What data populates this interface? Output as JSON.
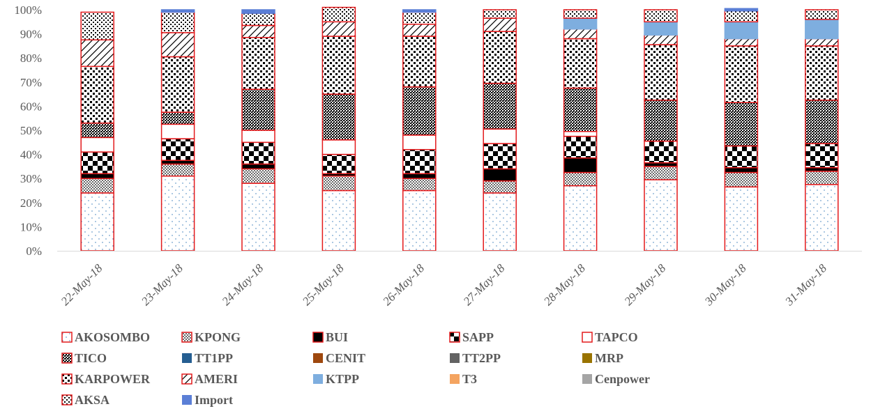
{
  "chart_data": {
    "type": "bar",
    "stacked": true,
    "percent_stacked": true,
    "categories": [
      "22-May-18",
      "23-May-18",
      "24-May-18",
      "25-May-18",
      "26-May-18",
      "27-May-18",
      "28-May-18",
      "29-May-18",
      "30-May-18",
      "31-May-18"
    ],
    "ylim": [
      0,
      100
    ],
    "y_ticks": [
      "0%",
      "10%",
      "20%",
      "30%",
      "40%",
      "50%",
      "60%",
      "70%",
      "80%",
      "90%",
      "100%"
    ],
    "grid": false,
    "legend_position": "bottom",
    "series": [
      {
        "name": "AKOSOMBO",
        "pattern": "dots-sparse",
        "edge": "#e31a1c",
        "values": [
          24,
          31,
          28,
          25,
          25,
          24,
          27,
          29.5,
          26.5,
          27.5
        ]
      },
      {
        "name": "KPONG",
        "pattern": "dots-dense",
        "edge": "#e31a1c",
        "values": [
          6,
          5,
          6,
          6,
          5,
          5,
          5.5,
          5.5,
          6,
          5.5
        ]
      },
      {
        "name": "BUI",
        "pattern": "solid-black",
        "edge": "#e31a1c",
        "values": [
          2,
          1.5,
          2,
          1,
          2,
          5,
          6,
          1.5,
          2,
          1.5
        ]
      },
      {
        "name": "SAPP",
        "pattern": "checker",
        "edge": "#e31a1c",
        "values": [
          9,
          9,
          9,
          8,
          10,
          10.5,
          9,
          9,
          9,
          10
        ]
      },
      {
        "name": "TAPCO",
        "pattern": "white",
        "edge": "#e31a1c",
        "values": [
          6,
          6,
          5,
          6,
          6,
          6,
          2,
          0,
          0,
          0
        ]
      },
      {
        "name": "TICO",
        "pattern": "cross",
        "edge": "#e31a1c",
        "values": [
          6,
          5,
          17,
          19,
          20,
          19,
          18,
          17,
          18,
          18
        ]
      },
      {
        "name": "TT1PP",
        "pattern": "solid",
        "color": "#255e91",
        "values": [
          0,
          0,
          0,
          0,
          0,
          0,
          0,
          0,
          0,
          0
        ]
      },
      {
        "name": "CENIT",
        "pattern": "solid",
        "color": "#9e480e",
        "values": [
          0,
          0,
          0,
          0,
          0,
          0,
          0,
          0,
          0,
          0
        ]
      },
      {
        "name": "TT2PP",
        "pattern": "solid",
        "color": "#636363",
        "values": [
          0,
          0,
          0,
          0,
          0,
          0,
          0,
          0,
          0,
          0
        ]
      },
      {
        "name": "MRP",
        "pattern": "solid",
        "color": "#997300",
        "values": [
          0,
          0,
          0,
          0,
          0,
          0,
          0,
          0,
          0,
          0
        ]
      },
      {
        "name": "KARPOWER",
        "pattern": "dots-big",
        "edge": "#e31a1c",
        "values": [
          23.5,
          23,
          21.5,
          24,
          21,
          21.5,
          20.5,
          23,
          23.5,
          22.5
        ]
      },
      {
        "name": "AMERI",
        "pattern": "diagonal",
        "edge": "#e31a1c",
        "values": [
          11,
          10,
          5,
          6,
          5,
          5.5,
          4,
          4,
          3,
          3
        ]
      },
      {
        "name": "KTPP",
        "pattern": "solid",
        "color": "#7eaedf",
        "values": [
          0,
          0,
          0,
          0,
          0,
          0,
          4.5,
          5.5,
          7,
          8
        ]
      },
      {
        "name": "T3",
        "pattern": "solid",
        "color": "#f4a460",
        "values": [
          0,
          0,
          0,
          0,
          0,
          0,
          0,
          0,
          0,
          0
        ]
      },
      {
        "name": "Cenpower",
        "pattern": "solid",
        "color": "#a5a5a5",
        "values": [
          0,
          0,
          0,
          0,
          0,
          0,
          0,
          0,
          0,
          0
        ]
      },
      {
        "name": "AKSA",
        "pattern": "dots-medium",
        "edge": "#e31a1c",
        "values": [
          11.5,
          8.5,
          5,
          6,
          5,
          3.5,
          3.5,
          5,
          4.5,
          4
        ]
      },
      {
        "name": "Import",
        "pattern": "solid",
        "color": "#5b7fd6",
        "values": [
          0,
          1,
          1.5,
          0,
          1,
          0,
          0,
          0,
          1,
          0
        ]
      }
    ]
  }
}
